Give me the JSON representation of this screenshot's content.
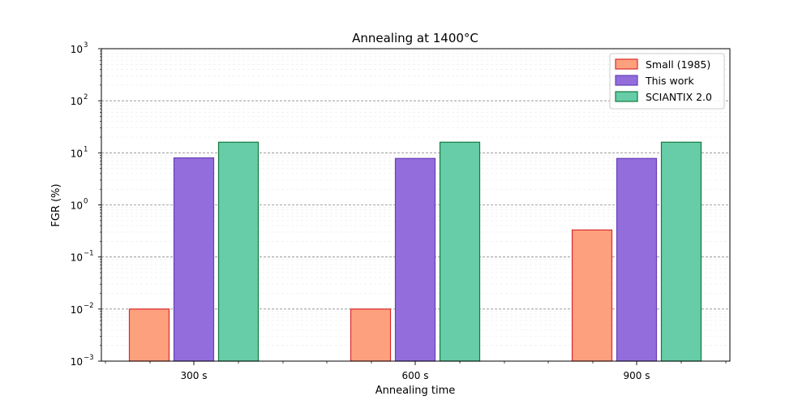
{
  "chart_data": {
    "type": "bar",
    "title": "Annealing at 1400°C",
    "xlabel": "Annealing time",
    "ylabel": "FGR (%)",
    "yscale": "log",
    "ylim": [
      0.001,
      1000
    ],
    "y_tick_labels": [
      "10",
      "10",
      "10",
      "10",
      "10",
      "10",
      "10"
    ],
    "y_tick_exponents": [
      "−3",
      "−2",
      "−1",
      "0",
      "1",
      "2",
      "3"
    ],
    "categories": [
      "300 s",
      "600 s",
      "900 s"
    ],
    "series": [
      {
        "name": "Small (1985)",
        "values": [
          0.01,
          0.01,
          0.33
        ],
        "fill": "#fda07e",
        "edge": "#dc2a2a"
      },
      {
        "name": "This work",
        "values": [
          8.0,
          7.8,
          7.8
        ],
        "fill": "#936ddb",
        "edge": "#6541b8"
      },
      {
        "name": "SCIANTIX 2.0",
        "values": [
          16.0,
          16.0,
          16.0
        ],
        "fill": "#66cda8",
        "edge": "#137a3c"
      }
    ],
    "grid": "horizontal major dashed, minor faint",
    "legend_position": "top-right"
  }
}
